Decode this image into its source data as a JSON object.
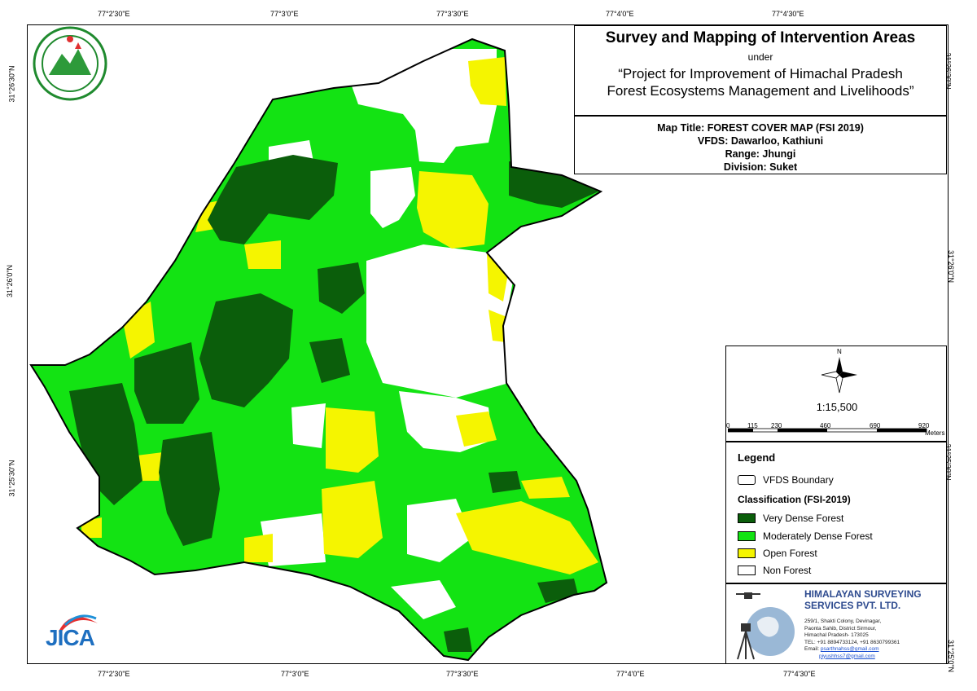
{
  "map": {
    "title": "Survey and Mapping of Intervention Areas",
    "under": "under",
    "project_line1": "“Project for Improvement of Himachal Pradesh",
    "project_line2": "Forest Ecosystems Management and Livelihoods”",
    "map_title": "Map Title: FOREST COVER MAP (FSI 2019)",
    "vfds": "VFDS: Dawarloo, Kathiuni",
    "range": "Range: Jhungi",
    "division": "Division: Suket"
  },
  "grid": {
    "top_labels": [
      "77°2'30\"E",
      "77°3'0\"E",
      "77°3'30\"E",
      "77°4'0\"E",
      "77°4'30\"E"
    ],
    "bottom_labels": [
      "77°2'30\"E",
      "77°3'0\"E",
      "77°3'30\"E",
      "77°4'0\"E",
      "77°4'30\"E"
    ],
    "left_labels": [
      "31°26'30\"N",
      "31°26'0\"N",
      "31°25'30\"N"
    ],
    "right_labels": [
      "31°26'30\"N",
      "31°26'0\"N",
      "31°25'30\"N",
      "31°25'0\"N"
    ]
  },
  "scale": {
    "north": "N",
    "ratio": "1:15,500",
    "ticks": [
      "0",
      "115",
      "230",
      "460",
      "690",
      "920"
    ],
    "unit": "Meters"
  },
  "legend": {
    "title": "Legend",
    "boundary": "VFDS Boundary",
    "classification_title": "Classification (FSI-2019)",
    "classes": [
      {
        "label": "Very Dense Forest",
        "color": "#0b5e0b"
      },
      {
        "label": "Moderately Dense Forest",
        "color": "#13e313"
      },
      {
        "label": "Open Forest",
        "color": "#f5f500"
      },
      {
        "label": "Non Forest",
        "color": "#ffffff"
      }
    ]
  },
  "company": {
    "name_line1": "HIMALAYAN SURVEYING",
    "name_line2": "SERVICES PVT. LTD.",
    "addr1": "259/1, Shakti Colony, Devinagar,",
    "addr2": "Paonta Sahib, District Sirmour,",
    "addr3": "Himachal Pradesh- 173025",
    "tel": "TEL: +91 8894733124, +91 8630799361",
    "email_label": "Email:",
    "email1": "psarthnahss@gmail.com",
    "email2": "piyushhss7@gmail.com"
  },
  "jica": "JICA"
}
